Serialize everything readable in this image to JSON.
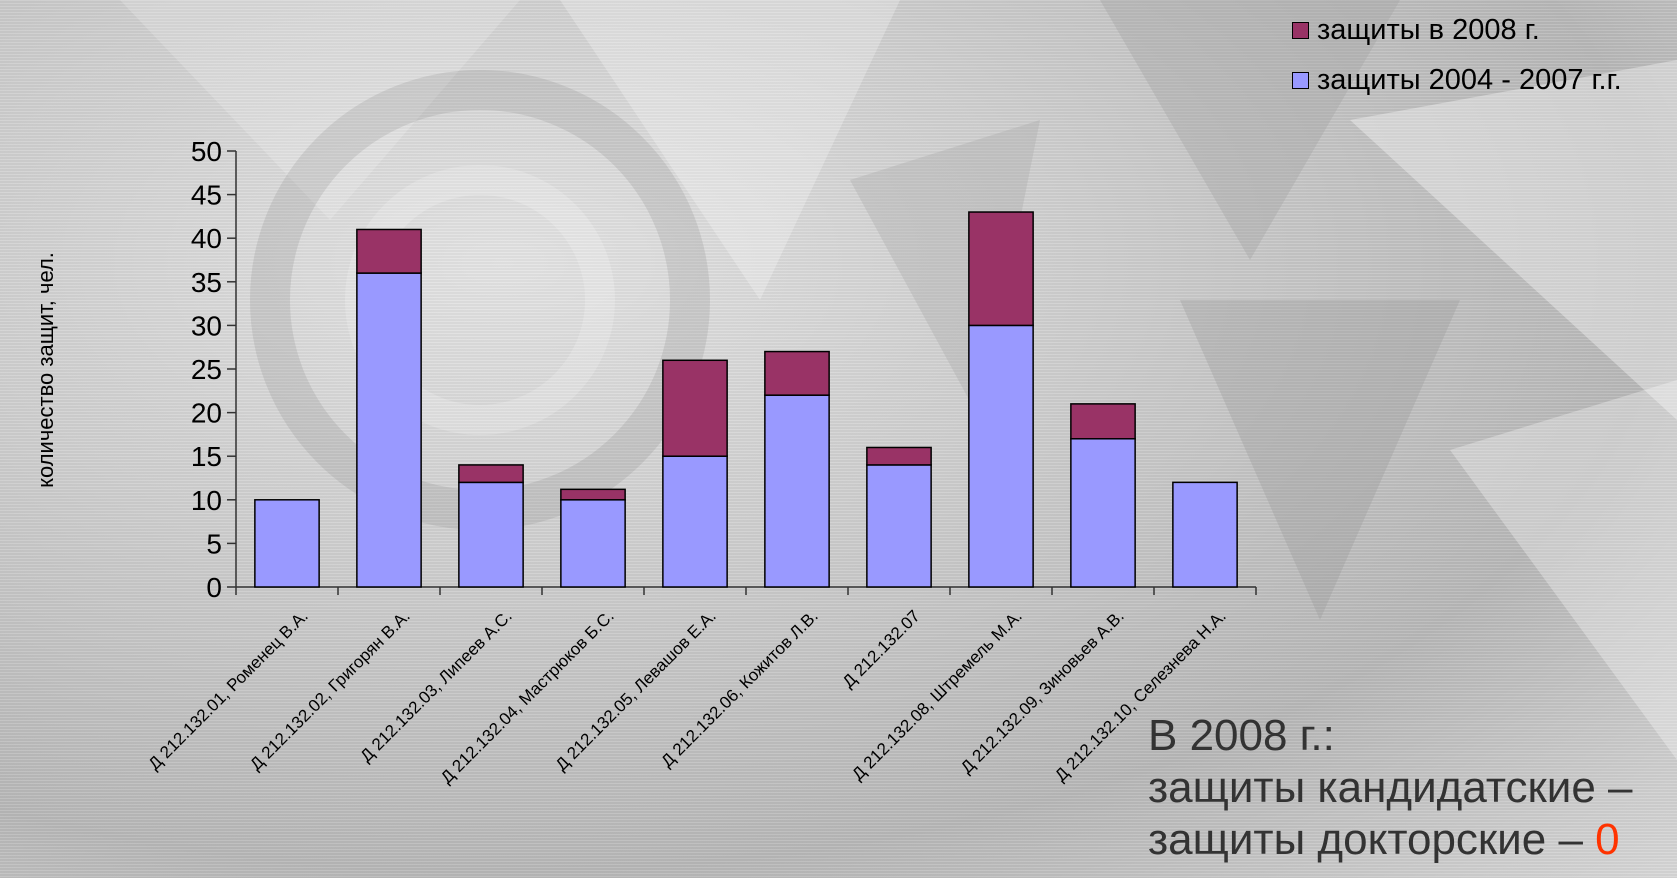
{
  "chart_data": {
    "type": "bar",
    "stacked": true,
    "categories": [
      "Д 212.132.01, Роменец В.А.",
      "Д 212.132.02, Григорян В.А.",
      "Д 212.132.03, Липеев А.С.",
      "Д 212.132.04, Мастрюков Б.С.",
      "Д 212.132.05, Левашов Е.А.",
      "Д 212.132.06, Кожитов Л.В.",
      "Д 212.132.07",
      "Д 212.132.08, Штремель М.А.",
      "Д 212.132.09, Зиновьев А.В.",
      "Д 212.132.10, Селезнева Н.А."
    ],
    "series": [
      {
        "name": "защиты 2004 - 2007 г.г.",
        "color": "#9999ff",
        "values": [
          10,
          36,
          12,
          10,
          15,
          22,
          14,
          30,
          17,
          12
        ]
      },
      {
        "name": "защиты в 2008 г.",
        "color": "#993366",
        "values": [
          0,
          5,
          2,
          1.2,
          11,
          5,
          2,
          13,
          4,
          0
        ]
      }
    ],
    "ylabel": "количество защит, чел.",
    "ylim": [
      0,
      50
    ],
    "yticks": [
      "0",
      "5",
      "10",
      "15",
      "20",
      "25",
      "30",
      "35",
      "40",
      "45",
      "50"
    ],
    "grid": false,
    "legend_position": "top-right"
  },
  "note": {
    "line1": "В 2008 г.:",
    "line2": "защиты кандидатские –",
    "line3_prefix": "защиты докторские – ",
    "line3_value": "0"
  }
}
